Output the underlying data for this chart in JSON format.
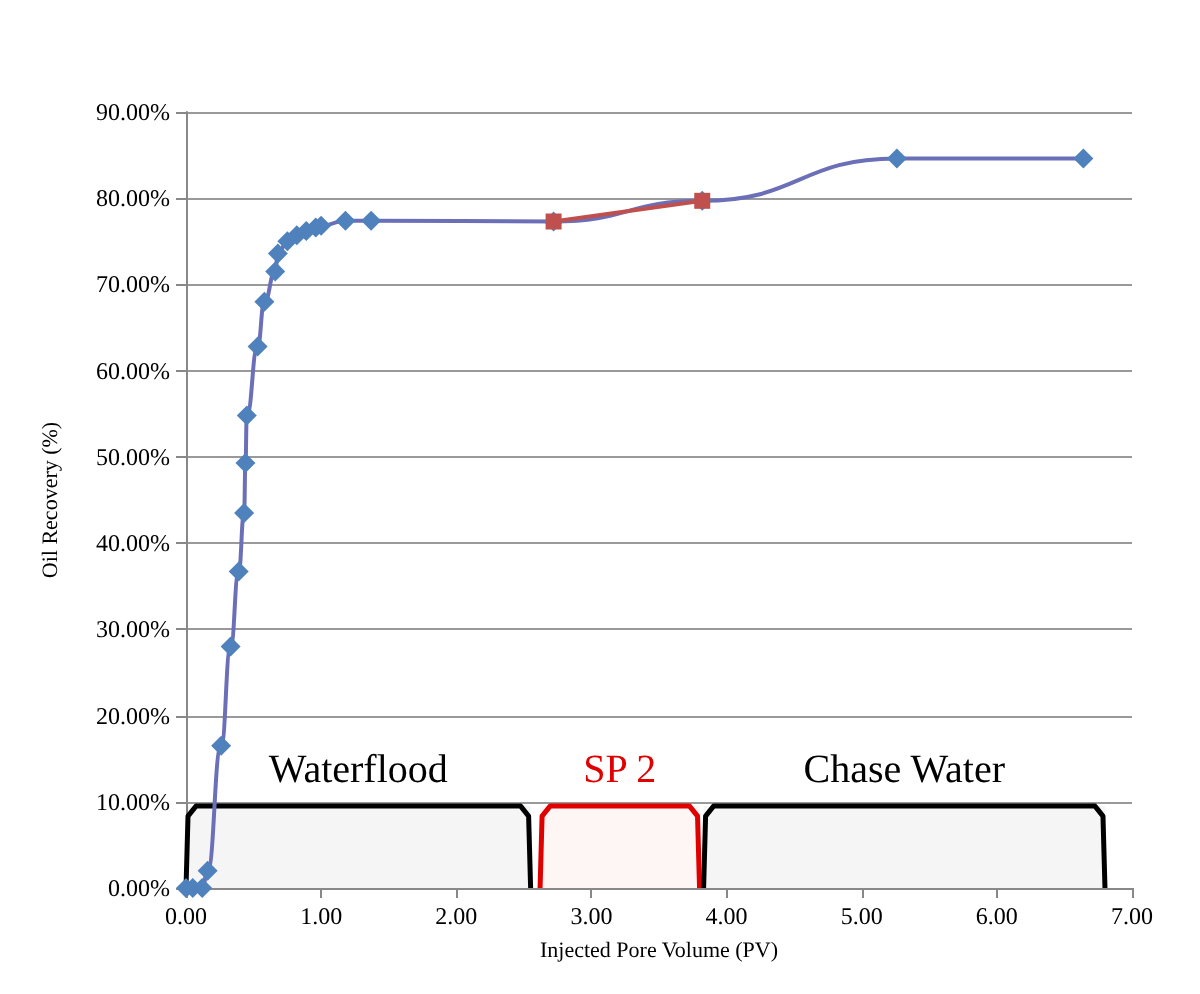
{
  "chart_data": {
    "type": "line",
    "xlabel": "Injected Pore Volume (PV)",
    "ylabel": "Oil Recovery (%)",
    "xlim": [
      0,
      7
    ],
    "xticks": [
      {
        "value": 0,
        "label": "0.00"
      },
      {
        "value": 1,
        "label": "1.00"
      },
      {
        "value": 2,
        "label": "2.00"
      },
      {
        "value": 3,
        "label": "3.00"
      },
      {
        "value": 4,
        "label": "4.00"
      },
      {
        "value": 5,
        "label": "5.00"
      },
      {
        "value": 6,
        "label": "6.00"
      },
      {
        "value": 7,
        "label": "7.00"
      }
    ],
    "ylim": [
      0,
      90
    ],
    "yticks": [
      {
        "value": 0,
        "label": "0.00%"
      },
      {
        "value": 10,
        "label": "10.00%"
      },
      {
        "value": 20,
        "label": "20.00%"
      },
      {
        "value": 30,
        "label": "30.00%"
      },
      {
        "value": 40,
        "label": "40.00%"
      },
      {
        "value": 50,
        "label": "50.00%"
      },
      {
        "value": 60,
        "label": "60.00%"
      },
      {
        "value": 70,
        "label": "70.00%"
      },
      {
        "value": 80,
        "label": "80.00%"
      },
      {
        "value": 90,
        "label": "90.00%"
      }
    ],
    "grid": "y",
    "series": [
      {
        "color": "#4f81bd",
        "marker": "diamond",
        "x": [
          0,
          0.05,
          0.12,
          0.16,
          0.26,
          0.33,
          0.39,
          0.43,
          0.44,
          0.45,
          0.53,
          0.58,
          0.66,
          0.68,
          0.75,
          0.82,
          0.89,
          0.96,
          1.0,
          1.18,
          1.37,
          2.72,
          3.82,
          5.26,
          6.64
        ],
        "values": [
          0,
          0,
          0,
          2,
          16.5,
          28,
          36.7,
          43.5,
          49.3,
          54.8,
          62.8,
          68,
          71.5,
          73.6,
          75,
          75.7,
          76.2,
          76.6,
          76.8,
          77.4,
          77.4,
          77.3,
          79.7,
          84.6,
          84.6
        ]
      },
      {
        "color": "#c0504d",
        "marker": "square",
        "x": [
          2.72,
          3.82
        ],
        "values": [
          77.3,
          79.7
        ]
      }
    ],
    "bands": [
      {
        "axis": "x",
        "from": 0,
        "to": 2.55,
        "label": "Waterflood",
        "color": "#000000"
      },
      {
        "axis": "x",
        "from": 2.62,
        "to": 3.8,
        "label": "SP 2",
        "color": "#e00000"
      },
      {
        "axis": "x",
        "from": 3.83,
        "to": 6.8,
        "label": "Chase Water",
        "color": "#000000"
      }
    ]
  }
}
